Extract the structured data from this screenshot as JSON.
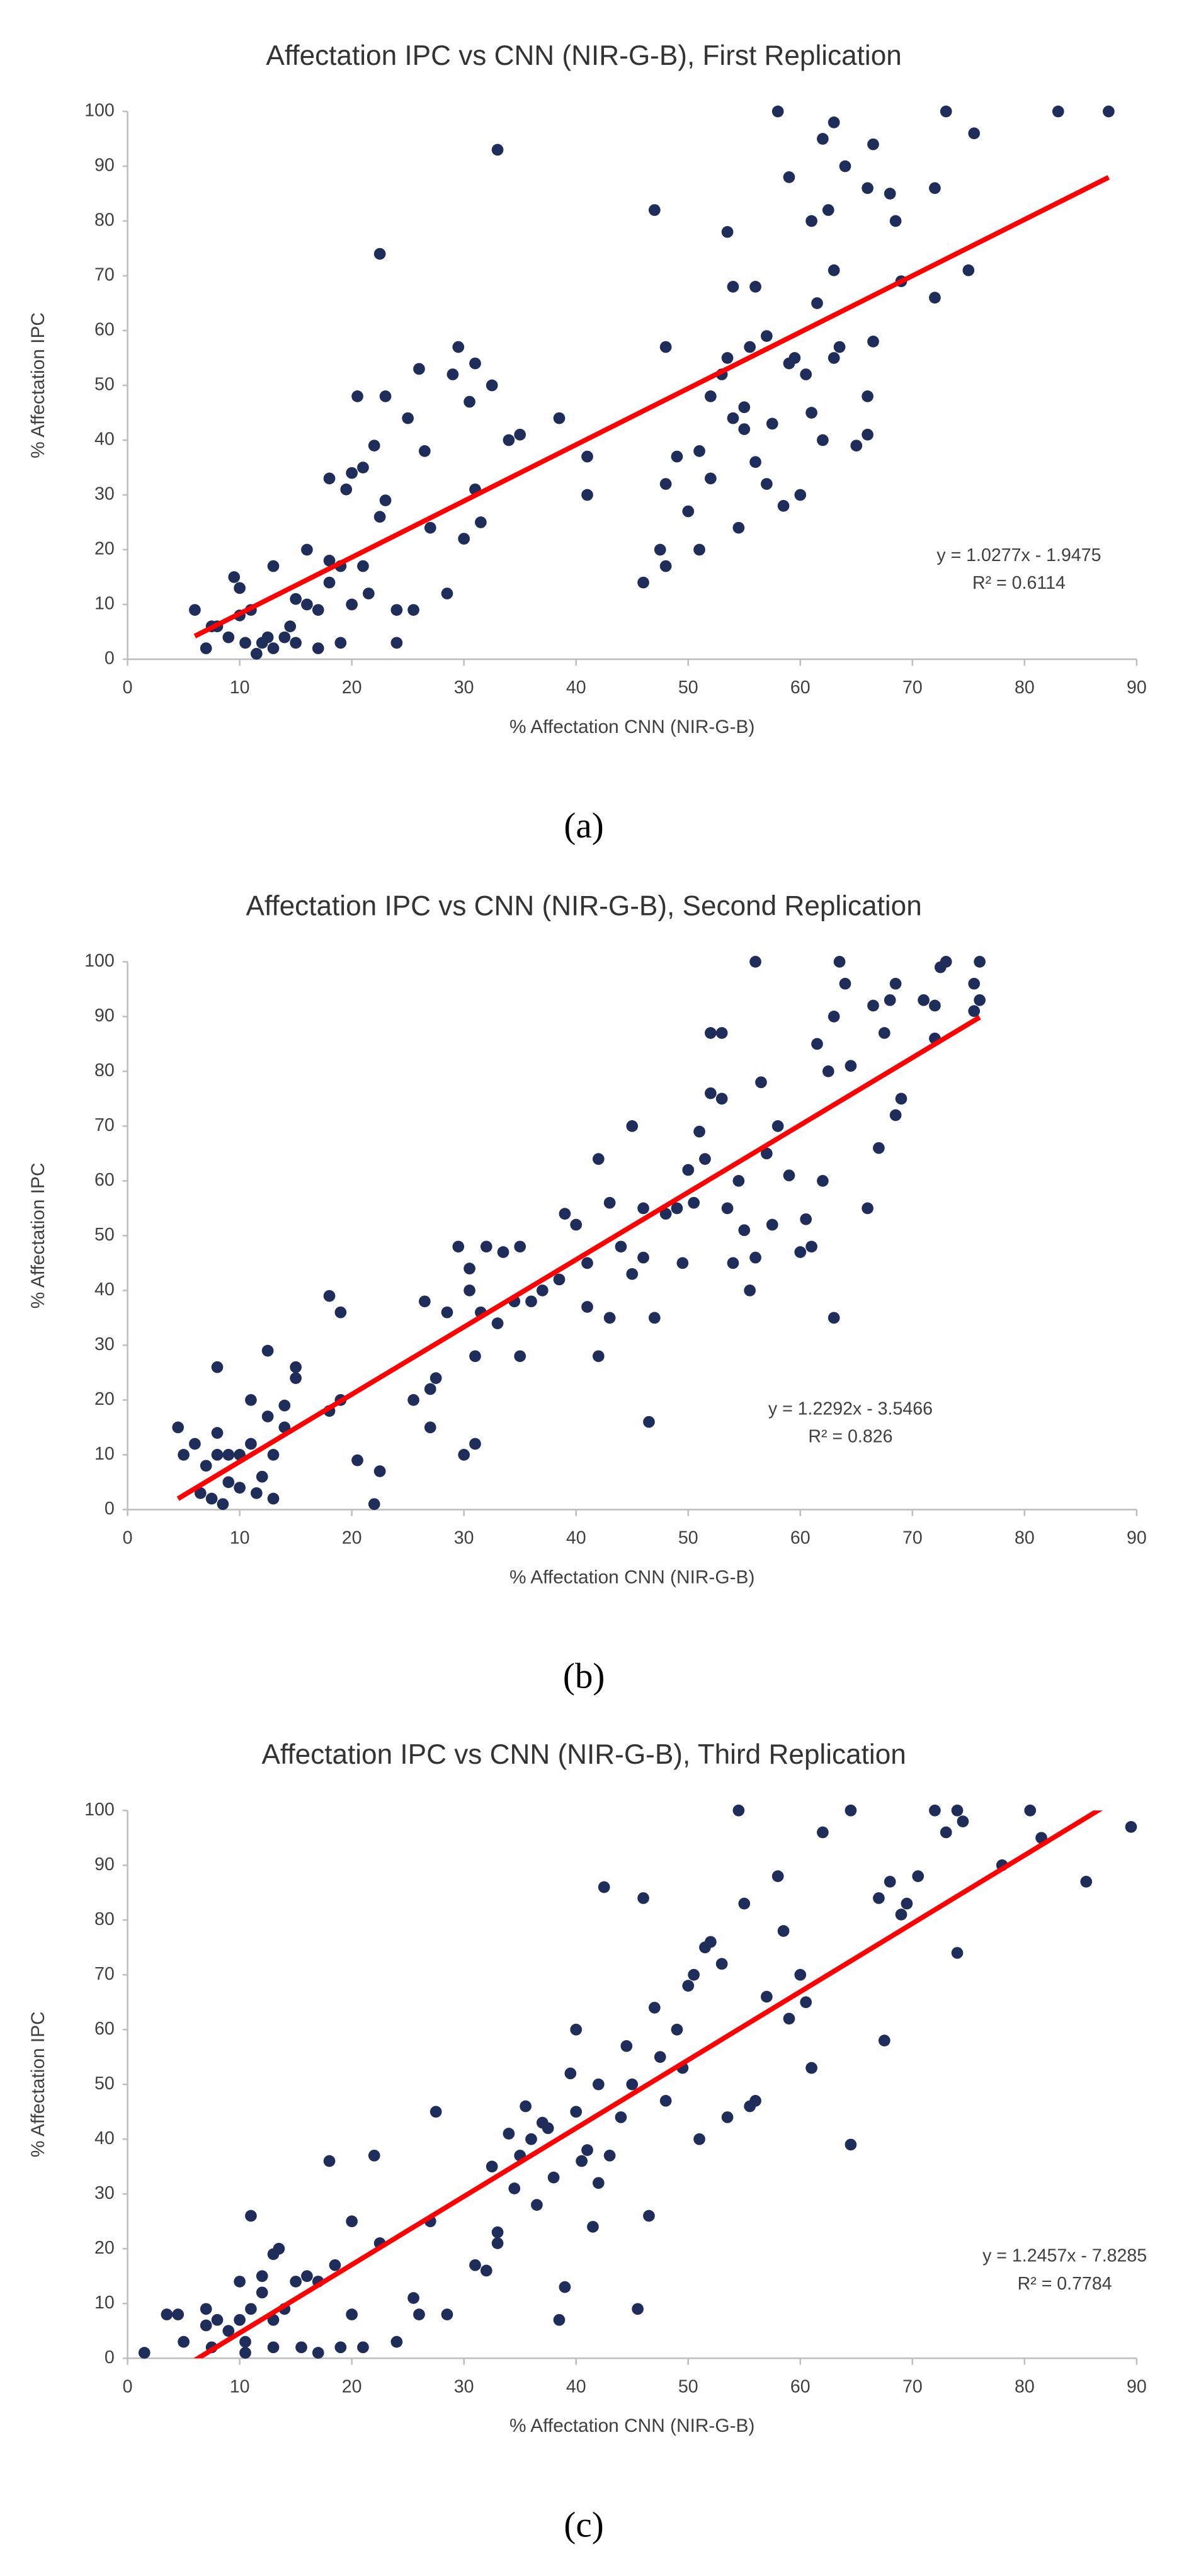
{
  "chart_data": [
    {
      "type": "scatter",
      "title": "Affectation IPC vs CNN (NIR-G-B), First Replication",
      "x_label": "% Affectation CNN (NIR-G-B)",
      "y_label": "% Affectation IPC",
      "caption": "(a)",
      "color": "#1f2d5a",
      "xlim": [
        0,
        90
      ],
      "ylim": [
        0,
        100
      ],
      "xticks": [
        0,
        10,
        20,
        30,
        40,
        50,
        60,
        70,
        80,
        90
      ],
      "yticks": [
        0,
        10,
        20,
        30,
        40,
        50,
        60,
        70,
        80,
        90,
        100
      ],
      "trendline": {
        "slope": 1.0277,
        "intercept": -1.9475,
        "color": "#ff0000",
        "equation": "y = 1.0277x - 1.9475",
        "r2_label": "R² = 0.6114"
      },
      "x": [
        6,
        7,
        7.5,
        8,
        9,
        9.5,
        10,
        10,
        10.5,
        11,
        11.5,
        12,
        12.5,
        13,
        13,
        14,
        14.5,
        15,
        15,
        16,
        16,
        17,
        17,
        18,
        18,
        18,
        19,
        19,
        19.5,
        20,
        20,
        20.5,
        21,
        21,
        21.5,
        22,
        22.5,
        22.5,
        23,
        23,
        24,
        24,
        25,
        25.5,
        26,
        26.5,
        27,
        28.5,
        29,
        29.5,
        30,
        30.5,
        31,
        31,
        31.5,
        32.5,
        33,
        34,
        35,
        38.5,
        41,
        41,
        46,
        47,
        47.5,
        48,
        48,
        48,
        49,
        50,
        51,
        51,
        52,
        52,
        53,
        53.5,
        53.5,
        54,
        54,
        54.5,
        55,
        55,
        55.5,
        56,
        56,
        57,
        57,
        57.5,
        58,
        58.5,
        59,
        59,
        59.5,
        60,
        60.5,
        61,
        61,
        61.5,
        62,
        62,
        62.5,
        63,
        63,
        63,
        63.5,
        64,
        65,
        66,
        66,
        66,
        66.5,
        66.5,
        68,
        68.5,
        69,
        72,
        72,
        73,
        75,
        75.5,
        83,
        87.5
      ],
      "values": [
        9,
        2,
        6,
        6,
        4,
        15,
        13,
        8,
        3,
        9,
        1,
        3,
        4,
        17,
        2,
        4,
        6,
        11,
        3,
        20,
        10,
        9,
        2,
        18,
        14,
        33,
        17,
        3,
        31,
        10,
        34,
        48,
        35,
        17,
        12,
        39,
        74,
        26,
        48,
        29,
        3,
        9,
        44,
        9,
        53,
        38,
        24,
        12,
        52,
        57,
        22,
        47,
        31,
        54,
        25,
        50,
        93,
        40,
        41,
        44,
        37,
        30,
        14,
        82,
        20,
        17,
        57,
        32,
        37,
        27,
        20,
        38,
        48,
        33,
        52,
        78,
        55,
        68,
        44,
        24,
        42,
        46,
        57,
        68,
        36,
        59,
        32,
        43,
        100,
        28,
        54,
        88,
        55,
        30,
        52,
        80,
        45,
        65,
        40,
        95,
        82,
        98,
        71,
        55,
        57,
        90,
        39,
        48,
        41,
        86,
        94,
        58,
        85,
        80,
        69,
        66,
        86,
        100,
        71,
        96,
        100,
        100
      ]
    },
    {
      "type": "scatter",
      "title": "Affectation IPC vs CNN (NIR-G-B), Second Replication",
      "x_label": "% Affectation CNN (NIR-G-B)",
      "y_label": "% Affectation IPC",
      "caption": "(b)",
      "color": "#1f2d5a",
      "xlim": [
        0,
        90
      ],
      "ylim": [
        0,
        100
      ],
      "xticks": [
        0,
        10,
        20,
        30,
        40,
        50,
        60,
        70,
        80,
        90
      ],
      "yticks": [
        0,
        10,
        20,
        30,
        40,
        50,
        60,
        70,
        80,
        90,
        100
      ],
      "trendline": {
        "slope": 1.2292,
        "intercept": -3.5466,
        "color": "#ff0000",
        "equation": "y = 1.2292x - 3.5466",
        "r2_label": "R² = 0.826"
      },
      "x": [
        4.5,
        5,
        6,
        6.5,
        7,
        7.5,
        8,
        8,
        8,
        8.5,
        9,
        9,
        10,
        10,
        11,
        11,
        11.5,
        12,
        12.5,
        12.5,
        13,
        13,
        14,
        14,
        15,
        15,
        18,
        18,
        19,
        19,
        20.5,
        22,
        22.5,
        25.5,
        26.5,
        27,
        27,
        27.5,
        28.5,
        29.5,
        30,
        30.5,
        30.5,
        31,
        31,
        31.5,
        32,
        33,
        33.5,
        34.5,
        35,
        35,
        36,
        37,
        38.5,
        39,
        40,
        41,
        41,
        42,
        42,
        43,
        43,
        44,
        45,
        45,
        46,
        46,
        46.5,
        47,
        48,
        49,
        49.5,
        50,
        50.5,
        51,
        51.5,
        52,
        52,
        53,
        53,
        53.5,
        54,
        54.5,
        55,
        55.5,
        56,
        56,
        56.5,
        57,
        57.5,
        58,
        59,
        60,
        60.5,
        61,
        61.5,
        62,
        62.5,
        63,
        63,
        63.5,
        64,
        64.5,
        66,
        66.5,
        67,
        67.5,
        68,
        68.5,
        68.5,
        69,
        71,
        72,
        72,
        72.5,
        73,
        75.5,
        75.5,
        76,
        76
      ],
      "values": [
        15,
        10,
        12,
        3,
        8,
        2,
        26,
        14,
        10,
        1,
        5,
        10,
        10,
        4,
        20,
        12,
        3,
        6,
        17,
        29,
        10,
        2,
        15,
        19,
        26,
        24,
        39,
        18,
        36,
        20,
        9,
        1,
        7,
        20,
        38,
        22,
        15,
        24,
        36,
        48,
        10,
        40,
        44,
        12,
        28,
        36,
        48,
        34,
        47,
        38,
        28,
        48,
        38,
        40,
        42,
        54,
        52,
        45,
        37,
        64,
        28,
        56,
        35,
        48,
        70,
        43,
        55,
        46,
        16,
        35,
        54,
        55,
        45,
        62,
        56,
        69,
        64,
        87,
        76,
        75,
        87,
        55,
        45,
        60,
        51,
        40,
        100,
        46,
        78,
        65,
        52,
        70,
        61,
        47,
        53,
        48,
        85,
        60,
        80,
        35,
        90,
        100,
        96,
        81,
        55,
        92,
        66,
        87,
        93,
        72,
        96,
        75,
        93,
        92,
        86,
        99,
        100,
        96,
        91,
        100,
        93
      ]
    },
    {
      "type": "scatter",
      "title": "Affectation IPC vs CNN (NIR-G-B), Third Replication",
      "x_label": "% Affectation CNN (NIR-G-B)",
      "y_label": "% Affectation IPC",
      "caption": "(c)",
      "color": "#1f2d5a",
      "xlim": [
        0,
        90
      ],
      "ylim": [
        0,
        100
      ],
      "xticks": [
        0,
        10,
        20,
        30,
        40,
        50,
        60,
        70,
        80,
        90
      ],
      "yticks": [
        0,
        10,
        20,
        30,
        40,
        50,
        60,
        70,
        80,
        90,
        100
      ],
      "trendline": {
        "slope": 1.2457,
        "intercept": -7.8285,
        "color": "#ff0000",
        "equation": "y = 1.2457x - 7.8285",
        "r2_label": "R² = 0.7784"
      },
      "x": [
        1.5,
        3.5,
        4.5,
        5,
        7,
        7,
        7.5,
        8,
        9,
        10,
        10,
        10.5,
        10.5,
        11,
        11,
        12,
        12,
        13,
        13,
        13,
        13.5,
        14,
        15,
        15.5,
        16,
        17,
        17,
        18,
        18.5,
        19,
        20,
        20,
        21,
        22,
        22.5,
        24,
        25.5,
        26,
        27,
        27.5,
        28.5,
        31,
        32,
        32.5,
        33,
        33,
        34,
        34.5,
        35,
        35.5,
        36,
        36.5,
        37,
        37.5,
        38,
        38.5,
        39,
        39.5,
        40,
        40,
        40.5,
        41,
        41.5,
        42,
        42,
        42.5,
        43,
        44,
        44.5,
        45,
        45.5,
        46,
        46.5,
        47,
        47.5,
        48,
        49,
        49.5,
        50,
        50.5,
        51,
        51.5,
        52,
        53,
        53.5,
        54.5,
        55,
        55.5,
        56,
        57,
        58,
        58.5,
        59,
        60,
        60.5,
        61,
        62,
        64.5,
        64.5,
        67,
        67.5,
        68,
        69,
        69.5,
        70.5,
        72,
        73,
        74,
        74,
        74.5,
        78,
        80.5,
        81.5,
        85.5,
        89.5
      ],
      "values": [
        1,
        8,
        8,
        3,
        9,
        6,
        2,
        7,
        5,
        7,
        14,
        3,
        1,
        26,
        9,
        15,
        12,
        7,
        2,
        19,
        20,
        9,
        14,
        2,
        15,
        1,
        14,
        36,
        17,
        2,
        25,
        8,
        2,
        37,
        21,
        3,
        11,
        8,
        25,
        45,
        8,
        17,
        16,
        35,
        21,
        23,
        41,
        31,
        37,
        46,
        40,
        28,
        43,
        42,
        33,
        7,
        13,
        52,
        60,
        45,
        36,
        38,
        24,
        32,
        50,
        86,
        37,
        44,
        57,
        50,
        9,
        84,
        26,
        64,
        55,
        47,
        60,
        53,
        68,
        70,
        40,
        75,
        76,
        72,
        44,
        100,
        83,
        46,
        47,
        66,
        88,
        78,
        62,
        70,
        65,
        53,
        96,
        100,
        39,
        84,
        58,
        87,
        81,
        83,
        88,
        100,
        96,
        100,
        74,
        98,
        90,
        100,
        95,
        87,
        97
      ]
    }
  ]
}
